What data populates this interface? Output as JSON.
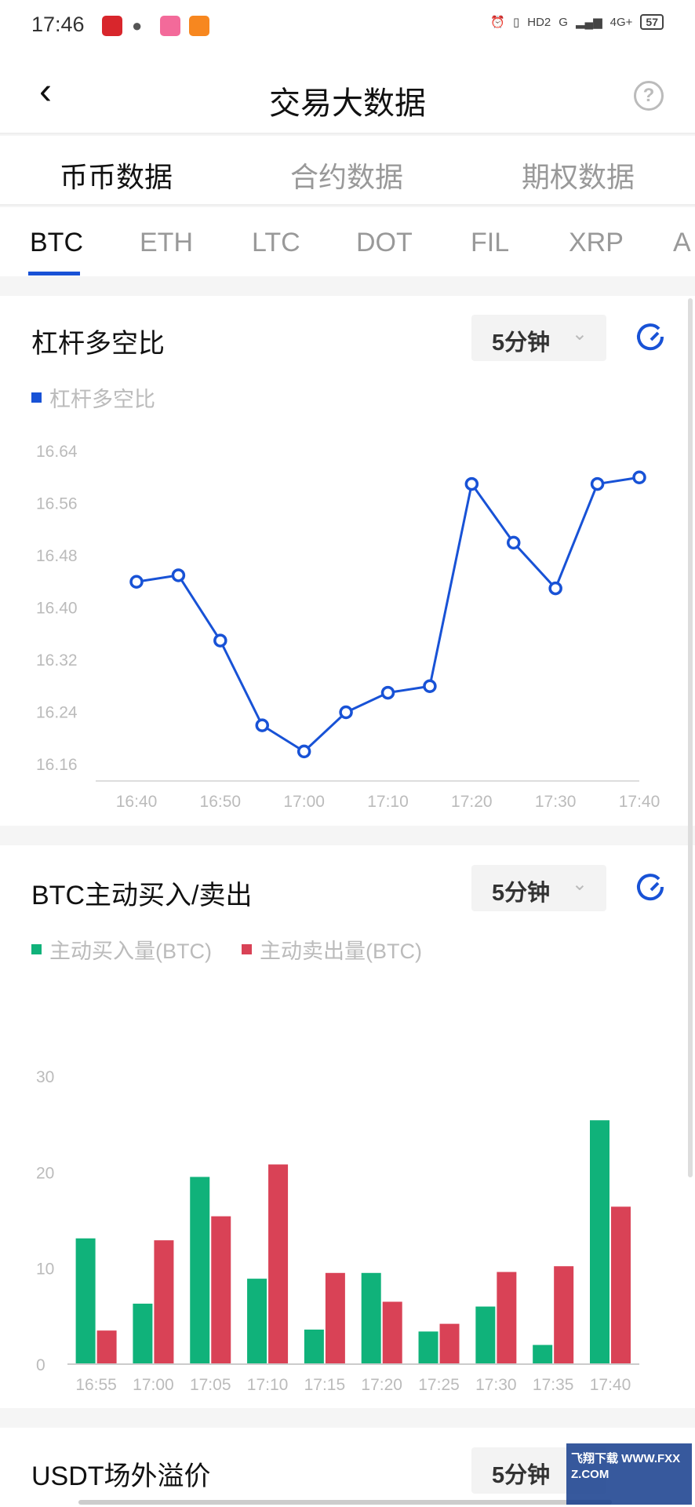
{
  "status_bar": {
    "time": "17:46",
    "indicators": [
      "HD2",
      "G",
      "4G+"
    ],
    "battery": "57"
  },
  "header": {
    "title": "交易大数据",
    "back_icon": "chevron-left-icon",
    "help_icon": "question-circle-icon"
  },
  "tabs": [
    {
      "label": "币币数据",
      "active": true
    },
    {
      "label": "合约数据",
      "active": false
    },
    {
      "label": "期权数据",
      "active": false
    }
  ],
  "coins": [
    {
      "label": "BTC",
      "active": true
    },
    {
      "label": "ETH"
    },
    {
      "label": "LTC"
    },
    {
      "label": "DOT"
    },
    {
      "label": "FIL"
    },
    {
      "label": "XRP"
    },
    {
      "label": "A"
    }
  ],
  "colors": {
    "accent": "#1852d6",
    "buy": "#10b27a",
    "sell": "#d94256"
  },
  "card1": {
    "title": "杠杆多空比",
    "interval": "5分钟",
    "legend": "杠杆多空比"
  },
  "card2": {
    "title": "BTC主动买入/卖出",
    "interval": "5分钟",
    "legend_buy": "主动买入量(BTC)",
    "legend_sell": "主动卖出量(BTC)"
  },
  "card3": {
    "title": "USDT场外溢价",
    "interval": "5分钟"
  },
  "watermark": "飞翔下载 WWW.FXXZ.COM",
  "chart_data": [
    {
      "type": "line",
      "series": [
        {
          "name": "杠杆多空比",
          "values": [
            16.44,
            16.45,
            16.35,
            16.22,
            16.18,
            16.24,
            16.27,
            16.28,
            16.59,
            16.5,
            16.43,
            16.59,
            16.6
          ]
        }
      ],
      "x": [
        "16:40",
        "16:45",
        "16:50",
        "16:55",
        "17:00",
        "17:05",
        "17:10",
        "17:15",
        "17:20",
        "17:25",
        "17:30",
        "17:35",
        "17:40"
      ],
      "xticks": [
        "16:40",
        "16:50",
        "17:00",
        "17:10",
        "17:20",
        "17:30",
        "17:40"
      ],
      "yticks": [
        "16.16",
        "16.24",
        "16.32",
        "16.40",
        "16.48",
        "16.56",
        "16.64"
      ],
      "ylim": [
        16.16,
        16.64
      ],
      "grid": false
    },
    {
      "type": "bar",
      "categories": [
        "16:55",
        "17:00",
        "17:05",
        "17:10",
        "17:15",
        "17:20",
        "17:25",
        "17:30",
        "17:35",
        "17:40"
      ],
      "series": [
        {
          "name": "主动买入量(BTC)",
          "values": [
            13.1,
            6.3,
            19.5,
            8.9,
            3.6,
            9.5,
            3.4,
            6.0,
            2.0,
            25.4
          ]
        },
        {
          "name": "主动卖出量(BTC)",
          "values": [
            3.5,
            12.9,
            15.4,
            20.8,
            9.5,
            6.5,
            4.2,
            9.6,
            10.2,
            16.4
          ]
        }
      ],
      "yticks": [
        "0",
        "10",
        "20",
        "30"
      ],
      "ylim": [
        0,
        30
      ],
      "grid": false
    }
  ]
}
